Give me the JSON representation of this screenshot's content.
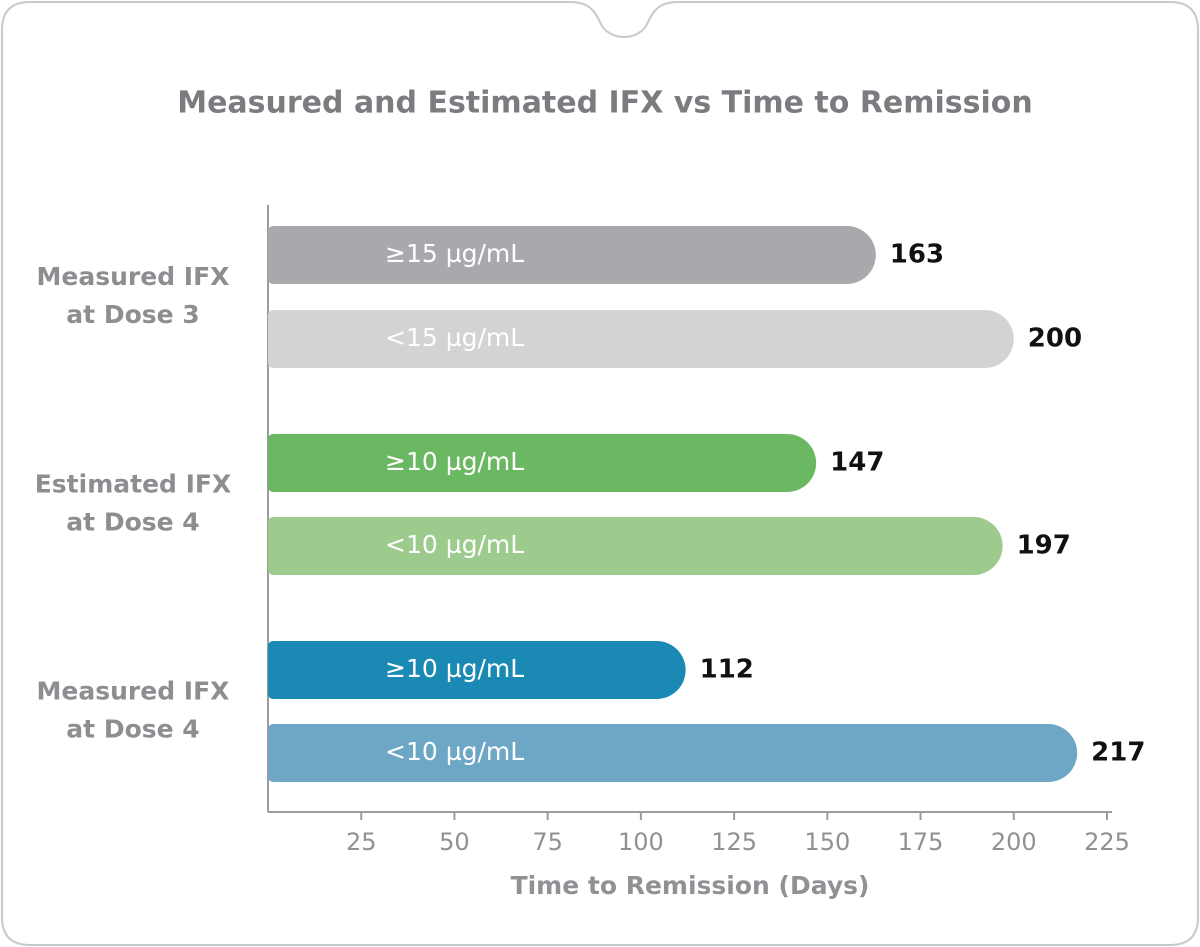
{
  "chart_data": {
    "type": "bar",
    "orientation": "horizontal",
    "title": "Measured and Estimated IFX vs Time to Remission",
    "x_label": "Time to Remission (Days)",
    "groups": [
      {
        "label": [
          "Measured IFX",
          "at Dose 3"
        ],
        "bars": [
          {
            "label": "≥15 µg/mL",
            "value": 163,
            "color": "#a7a9ac"
          },
          {
            "label": "<15 µg/mL",
            "value": 200,
            "color": "#d1d3d4"
          }
        ]
      },
      {
        "label": [
          "Estimated IFX",
          "at Dose 4"
        ],
        "bars": [
          {
            "label": "≥10 µg/mL",
            "value": 147,
            "color": "#6bb862"
          },
          {
            "label": "<10 µg/mL",
            "value": 197,
            "color": "#9dcb8d"
          }
        ]
      },
      {
        "label": [
          "Measured IFX",
          "at Dose 4"
        ],
        "bars": [
          {
            "label": "≥10 µg/mL",
            "value": 112,
            "color": "#1a8ab5"
          },
          {
            "label": "<10 µg/mL",
            "value": 217,
            "color": "#6ea6c6"
          }
        ]
      }
    ],
    "xlim": [
      0,
      225
    ],
    "xticks": [
      25,
      50,
      75,
      100,
      125,
      150,
      175,
      200,
      225
    ]
  }
}
